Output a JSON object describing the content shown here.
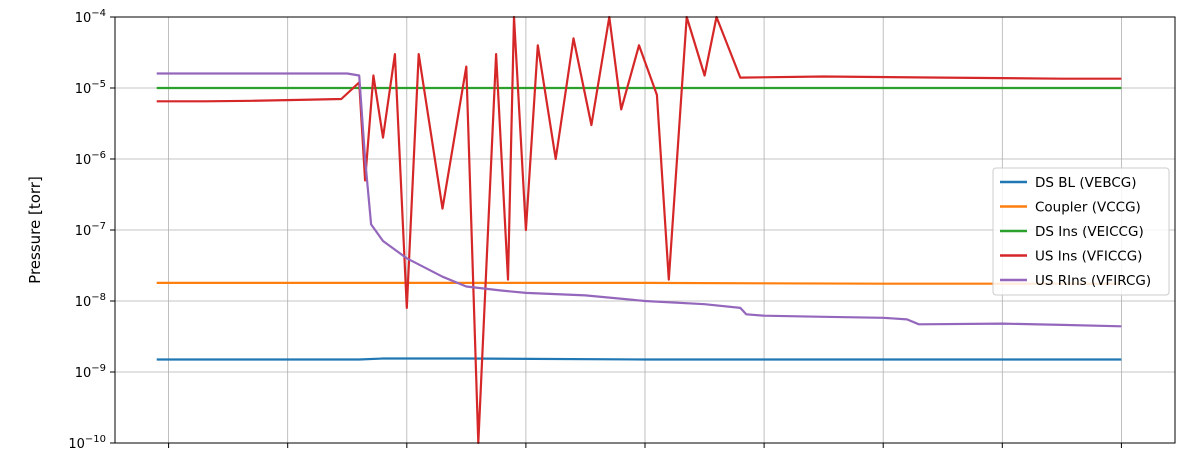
{
  "chart_data": {
    "type": "line",
    "title": "",
    "xlabel": "",
    "ylabel": "Pressure [torr]",
    "yscale": "log",
    "ylim": [
      1e-10,
      0.0001
    ],
    "yticks": [
      {
        "value": 1e-10,
        "base": "10",
        "exp": "−10"
      },
      {
        "value": 1e-09,
        "base": "10",
        "exp": "−9"
      },
      {
        "value": 1e-08,
        "base": "10",
        "exp": "−8"
      },
      {
        "value": 1e-07,
        "base": "10",
        "exp": "−7"
      },
      {
        "value": 1e-06,
        "base": "10",
        "exp": "−6"
      },
      {
        "value": 1e-05,
        "base": "10",
        "exp": "−5"
      },
      {
        "value": 0.0001,
        "base": "10",
        "exp": "−4"
      }
    ],
    "x_tick_labels_visible": false,
    "xlim": [
      -0.45,
      8.45
    ],
    "xticks": [
      0,
      1,
      2,
      3,
      4,
      5,
      6,
      7,
      8
    ],
    "grid": true,
    "legend_position": "center-right",
    "series": [
      {
        "name": "DS BL (VEBCG)",
        "color": "#1f77b4",
        "x": [
          -0.1,
          1.6,
          1.8,
          2.5,
          4,
          6,
          8
        ],
        "y": [
          1.5e-09,
          1.5e-09,
          1.55e-09,
          1.55e-09,
          1.5e-09,
          1.5e-09,
          1.5e-09
        ]
      },
      {
        "name": "Coupler (VCCG)",
        "color": "#ff7f0e",
        "x": [
          -0.1,
          2,
          4,
          6,
          8
        ],
        "y": [
          1.8e-08,
          1.8e-08,
          1.8e-08,
          1.75e-08,
          1.75e-08
        ]
      },
      {
        "name": "DS Ins (VEICCG)",
        "color": "#2ca02c",
        "x": [
          -0.1,
          3,
          4,
          5,
          6,
          7,
          8
        ],
        "y": [
          1e-05,
          1e-05,
          1e-05,
          1e-05,
          1e-05,
          1e-05,
          1e-05
        ]
      },
      {
        "name": "US Ins (VFICCG)",
        "color": "#d62728",
        "x": [
          -0.1,
          0.3,
          0.7,
          1.1,
          1.45,
          1.6,
          1.65,
          1.72,
          1.8,
          1.9,
          2.0,
          2.1,
          2.3,
          2.5,
          2.6,
          2.75,
          2.85,
          2.9,
          3.0,
          3.1,
          3.25,
          3.4,
          3.55,
          3.7,
          3.8,
          3.95,
          4.1,
          4.2,
          4.35,
          4.5,
          4.6,
          4.8,
          5.5,
          6.5,
          7.5,
          8.0
        ],
        "y": [
          6.5e-06,
          6.5e-06,
          6.6e-06,
          6.8e-06,
          7e-06,
          1.2e-05,
          5e-07,
          1.5e-05,
          2e-06,
          3e-05,
          8e-09,
          3e-05,
          2e-07,
          2e-05,
          1e-10,
          3e-05,
          2e-08,
          0.0001,
          1e-07,
          4e-05,
          1e-06,
          5e-05,
          3e-06,
          0.0001,
          5e-06,
          4e-05,
          8e-06,
          2e-08,
          0.0001,
          1.5e-05,
          0.0001,
          1.4e-05,
          1.45e-05,
          1.4e-05,
          1.35e-05,
          1.35e-05
        ]
      },
      {
        "name": "US RIns (VFIRCG)",
        "color": "#9467bd",
        "x": [
          -0.1,
          0.5,
          1.0,
          1.5,
          1.6,
          1.65,
          1.7,
          1.8,
          2.0,
          2.3,
          2.5,
          2.8,
          3.0,
          3.5,
          4.0,
          4.5,
          4.8,
          4.85,
          5.0,
          5.5,
          6.0,
          6.2,
          6.3,
          7.0,
          7.5,
          8.0
        ],
        "y": [
          1.6e-05,
          1.6e-05,
          1.6e-05,
          1.6e-05,
          1.5e-05,
          1e-06,
          1.2e-07,
          7e-08,
          4e-08,
          2.2e-08,
          1.6e-08,
          1.4e-08,
          1.3e-08,
          1.2e-08,
          1e-08,
          9e-09,
          8e-09,
          6.5e-09,
          6.2e-09,
          6e-09,
          5.8e-09,
          5.5e-09,
          4.7e-09,
          4.8e-09,
          4.6e-09,
          4.4e-09
        ]
      }
    ]
  }
}
